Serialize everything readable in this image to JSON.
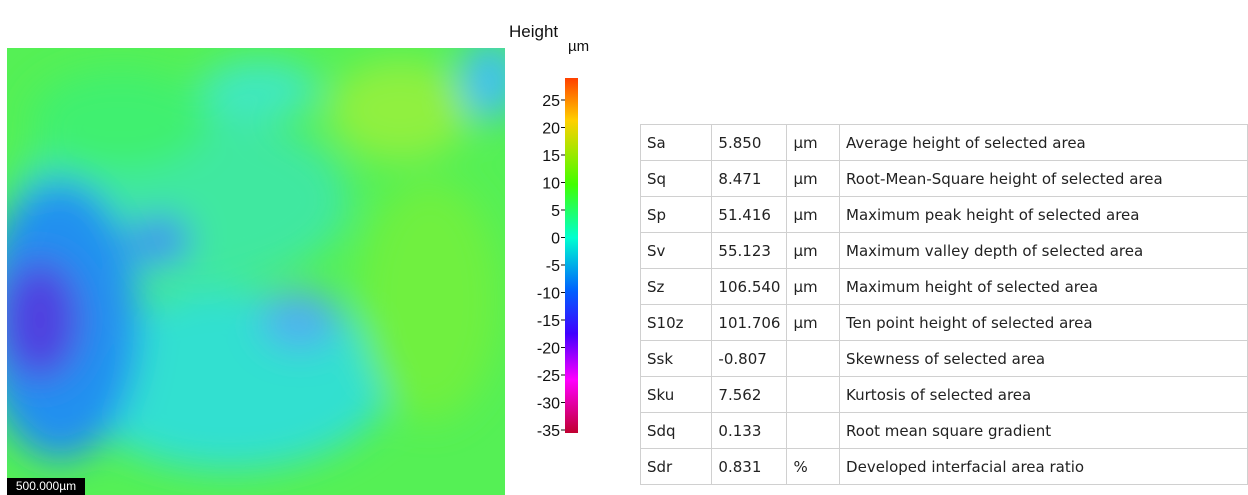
{
  "colorbar": {
    "title": "Height",
    "unit": "µm",
    "ticks": [
      "25",
      "20",
      "15",
      "10",
      "5",
      "0",
      "-5",
      "-10",
      "-15",
      "-20",
      "-25",
      "-30",
      "-35"
    ]
  },
  "image": {
    "scale_bar": "500.000µm"
  },
  "table": {
    "rows": [
      [
        "Sa",
        "5.850",
        "µm",
        "Average height of selected area"
      ],
      [
        "Sq",
        "8.471",
        "µm",
        "Root-Mean-Square height of selected area"
      ],
      [
        "Sp",
        "51.416",
        "µm",
        "Maximum peak height of selected area"
      ],
      [
        "Sv",
        "55.123",
        "µm",
        "Maximum valley depth of selected area"
      ],
      [
        "Sz",
        "106.540",
        "µm",
        "Maximum height of selected area"
      ],
      [
        "S10z",
        "101.706",
        "µm",
        "Ten point height of selected area"
      ],
      [
        "Ssk",
        "-0.807",
        "",
        "Skewness of selected area"
      ],
      [
        "Sku",
        "7.562",
        "",
        "Kurtosis of selected area"
      ],
      [
        "Sdq",
        "0.133",
        "",
        "Root mean square gradient"
      ],
      [
        "Sdr",
        "0.831",
        "%",
        "Developed interfacial area ratio"
      ]
    ]
  }
}
